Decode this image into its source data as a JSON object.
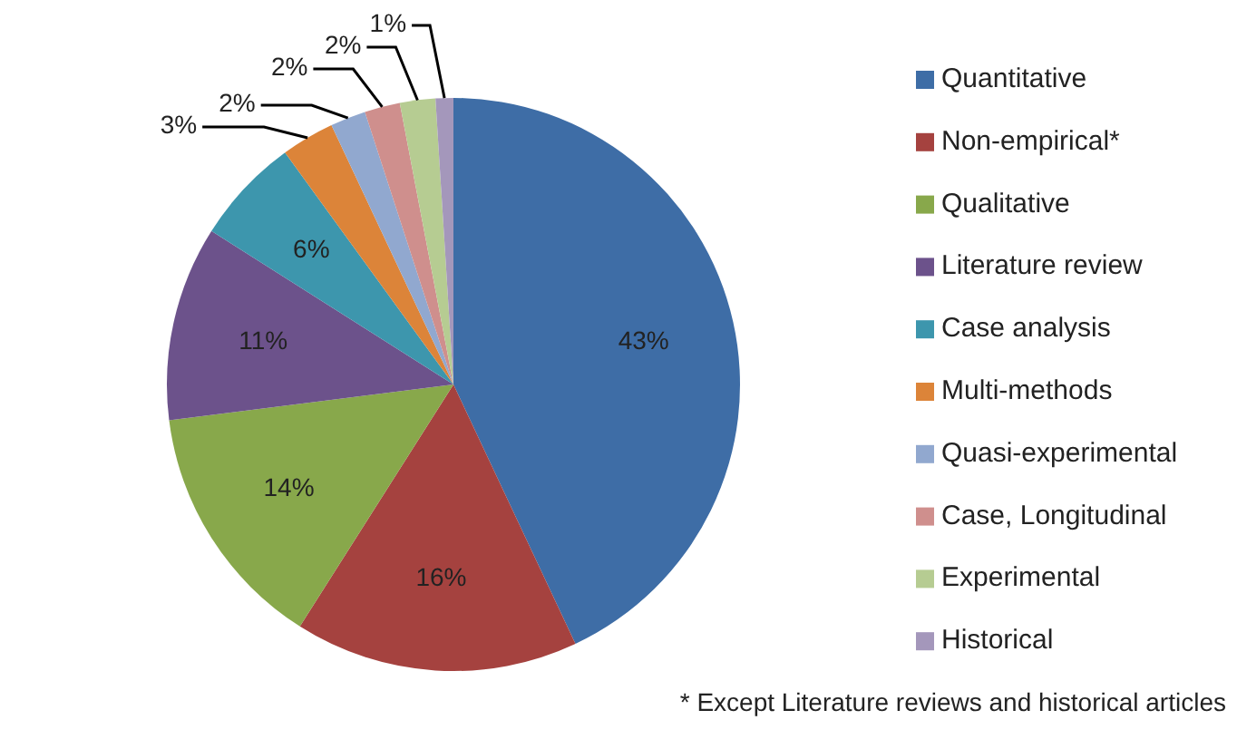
{
  "chart_data": {
    "type": "pie",
    "categories": [
      "Quantitative",
      "Non-empirical*",
      "Qualitative",
      "Literature review",
      "Case analysis",
      "Multi-methods",
      "Quasi-experimental",
      "Case, Longitudinal",
      "Experimental",
      "Historical"
    ],
    "values": [
      43,
      16,
      14,
      11,
      6,
      3,
      2,
      2,
      2,
      1
    ],
    "colors": [
      "#3e6da6",
      "#a5423f",
      "#88a84b",
      "#6c528b",
      "#3d96ad",
      "#dc8439",
      "#91a8cf",
      "#cf8f8d",
      "#b6cc92",
      "#a497bb"
    ],
    "value_labels": [
      "43%",
      "16%",
      "14%",
      "11%",
      "6%",
      "3%",
      "2%",
      "2%",
      "2%",
      "1%"
    ],
    "legend": "right",
    "annotations": [
      "* Except Literature reviews and historical articles"
    ]
  }
}
